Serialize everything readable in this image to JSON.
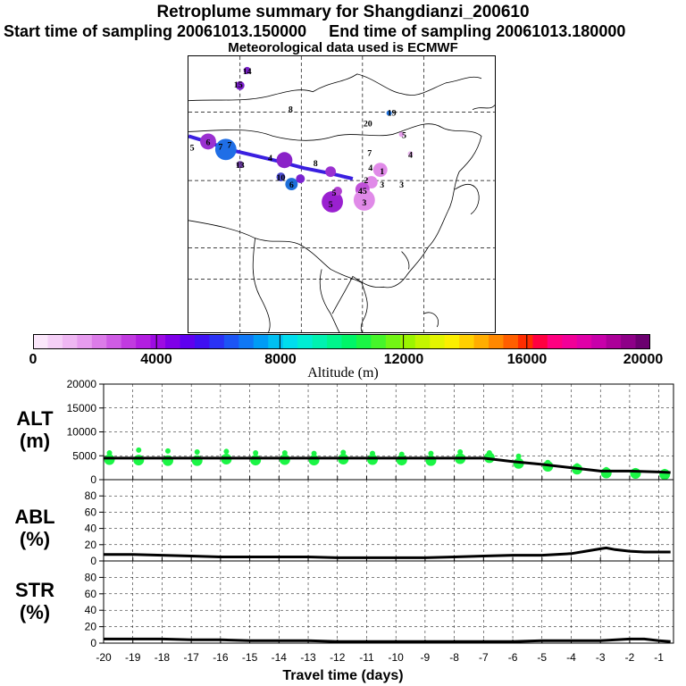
{
  "header": {
    "title": "Retroplume summary for Shangdianzi_200610",
    "sampling_line": "Start time of sampling 20061013.150000     End time of sampling 20061013.180000",
    "met_line": "Meteorological data used is ECMWF"
  },
  "colorbar": {
    "label": "Altitude (m)",
    "tick_labels": [
      "0",
      "4000",
      "8000",
      "12000",
      "16000",
      "20000"
    ],
    "colors": [
      "#fbe7fb",
      "#f5d0f7",
      "#efb7f3",
      "#e79cef",
      "#dc7ce9",
      "#cf5ce5",
      "#c13ae0",
      "#b21ee0",
      "#9d0be3",
      "#7f00e8",
      "#5f00ef",
      "#3f10f2",
      "#2a32f5",
      "#1c55f5",
      "#0f78f5",
      "#009cf5",
      "#00bff2",
      "#00dded",
      "#00edd3",
      "#00f2b0",
      "#00f58c",
      "#00f568",
      "#1bf545",
      "#46f52a",
      "#72f514",
      "#9cf500",
      "#c3f500",
      "#e3f500",
      "#fbef00",
      "#ffd000",
      "#ffad00",
      "#ff8800",
      "#ff5f00",
      "#ff2d00",
      "#ff0040",
      "#ff0080",
      "#f20098",
      "#e000a8",
      "#c800aa",
      "#ac0099",
      "#8e0088",
      "#6c0070"
    ]
  },
  "map_markers": [
    {
      "label": "14",
      "color": "#7a1fc9"
    },
    {
      "label": "15",
      "color": "#7a1fc9"
    },
    {
      "label": "8",
      "color": "#3a2a8a"
    },
    {
      "label": "20",
      "color": "#2a2a6a"
    },
    {
      "label": "19",
      "color": "#1e6fd9"
    },
    {
      "label": "5",
      "color": "#a050d0"
    },
    {
      "label": "4",
      "color": "#b070d0"
    },
    {
      "label": "6",
      "color": "#8a22c8"
    },
    {
      "label": "7",
      "color": "#1f6ee6"
    },
    {
      "label": "13",
      "color": "#6a3aa0"
    },
    {
      "label": "5",
      "color": "#2a50d0"
    },
    {
      "label": "10",
      "color": "#4a4ad0"
    },
    {
      "label": "6",
      "color": "#1e6fd9"
    },
    {
      "label": "8",
      "color": "#7a22d0"
    },
    {
      "label": "4",
      "color": "#9a30d0"
    },
    {
      "label": "7",
      "color": "#9a30d0"
    },
    {
      "label": "4",
      "color": "#5a2ab0"
    },
    {
      "label": "1",
      "color": "#e08ae8"
    },
    {
      "label": "2",
      "color": "#e08ae8"
    },
    {
      "label": "3",
      "color": "#d070e0"
    },
    {
      "label": "3",
      "color": "#d070e0"
    },
    {
      "label": "45",
      "color": "#c050d8"
    },
    {
      "label": "3",
      "color": "#e08ae8"
    },
    {
      "label": "5",
      "color": "#9a20d0"
    },
    {
      "label": "5",
      "color": "#b040d0"
    },
    {
      "label": "7",
      "color": "#8a2ad0"
    }
  ],
  "chart_data": [
    {
      "type": "scatter",
      "title": "ALT (m)",
      "ylabel": "ALT (m)",
      "xlabel": "Travel time (days)",
      "xlim": [
        -20,
        -0.5
      ],
      "ylim": [
        0,
        20000
      ],
      "yticks": [
        "0",
        "5000",
        "10000",
        "15000",
        "20000"
      ],
      "line": {
        "x": [
          -20,
          -19,
          -18,
          -17,
          -16,
          -15,
          -14,
          -13,
          -12,
          -11,
          -10,
          -9,
          -8,
          -7,
          -6,
          -5,
          -4,
          -3,
          -2,
          -1,
          -0.6
        ],
        "y": [
          4500,
          4500,
          4500,
          4500,
          4500,
          4500,
          4500,
          4500,
          4500,
          4500,
          4500,
          4500,
          4500,
          4500,
          3800,
          3200,
          2500,
          1800,
          1800,
          1600,
          1500
        ]
      },
      "points": {
        "x": [
          -19.8,
          -19.8,
          -18.8,
          -18.8,
          -17.8,
          -17.8,
          -16.8,
          -16.8,
          -15.8,
          -15.8,
          -14.8,
          -14.8,
          -13.8,
          -13.8,
          -12.8,
          -12.8,
          -11.8,
          -11.8,
          -10.8,
          -10.8,
          -9.8,
          -9.8,
          -8.8,
          -8.8,
          -7.8,
          -7.8,
          -6.8,
          -6.8,
          -5.8,
          -5.8,
          -4.8,
          -4.8,
          -3.8,
          -3.8,
          -2.8,
          -2.8,
          -1.8,
          -1.8,
          -0.8,
          -0.8
        ],
        "y": [
          4200,
          5600,
          4100,
          6200,
          4000,
          6000,
          4000,
          5800,
          4300,
          5900,
          4100,
          5600,
          4200,
          5600,
          4100,
          5500,
          4300,
          5700,
          4200,
          5500,
          4100,
          5300,
          4000,
          5500,
          4400,
          5800,
          4600,
          5600,
          3400,
          4900,
          2800,
          3600,
          2200,
          2900,
          1400,
          2100,
          1300,
          1900,
          1100,
          1700
        ],
        "color": "#1bf545"
      }
    },
    {
      "type": "line",
      "title": "ABL (%)",
      "ylabel": "ABL (%)",
      "xlabel": "Travel time (days)",
      "xlim": [
        -20,
        -0.5
      ],
      "ylim": [
        0,
        100
      ],
      "yticks": [
        "0",
        "20",
        "40",
        "60",
        "80"
      ],
      "x": [
        -20,
        -19,
        -18,
        -17,
        -16,
        -15,
        -14,
        -13,
        -12,
        -11,
        -10,
        -9,
        -8,
        -7,
        -6,
        -5,
        -4,
        -3.5,
        -3,
        -2.8,
        -2.5,
        -2,
        -1.5,
        -1,
        -0.6
      ],
      "y": [
        8,
        8,
        7,
        6,
        5,
        5,
        5,
        5,
        4,
        4,
        4,
        4,
        5,
        6,
        7,
        7,
        9,
        12,
        15,
        16,
        14,
        12,
        11,
        11,
        11
      ]
    },
    {
      "type": "line",
      "title": "STR (%)",
      "ylabel": "STR (%)",
      "xlabel": "Travel time (days)",
      "xlim": [
        -20,
        -0.5
      ],
      "ylim": [
        0,
        100
      ],
      "yticks": [
        "0",
        "20",
        "40",
        "60",
        "80"
      ],
      "xticks": [
        "-20",
        "-19",
        "-18",
        "-17",
        "-16",
        "-15",
        "-14",
        "-13",
        "-12",
        "-11",
        "-10",
        "-9",
        "-8",
        "-7",
        "-6",
        "-5",
        "-4",
        "-3",
        "-2",
        "-1"
      ],
      "x": [
        -20,
        -19,
        -18,
        -17,
        -16,
        -15,
        -14,
        -13,
        -12,
        -11,
        -10,
        -9,
        -8,
        -7,
        -6,
        -5,
        -4,
        -3,
        -2,
        -1.5,
        -1,
        -0.6
      ],
      "y": [
        5,
        5,
        5,
        4,
        4,
        3,
        3,
        3,
        2,
        2,
        2,
        2,
        2,
        2,
        2,
        3,
        3,
        3,
        5,
        5,
        3,
        2
      ]
    }
  ],
  "axis_title": "Travel time (days)"
}
